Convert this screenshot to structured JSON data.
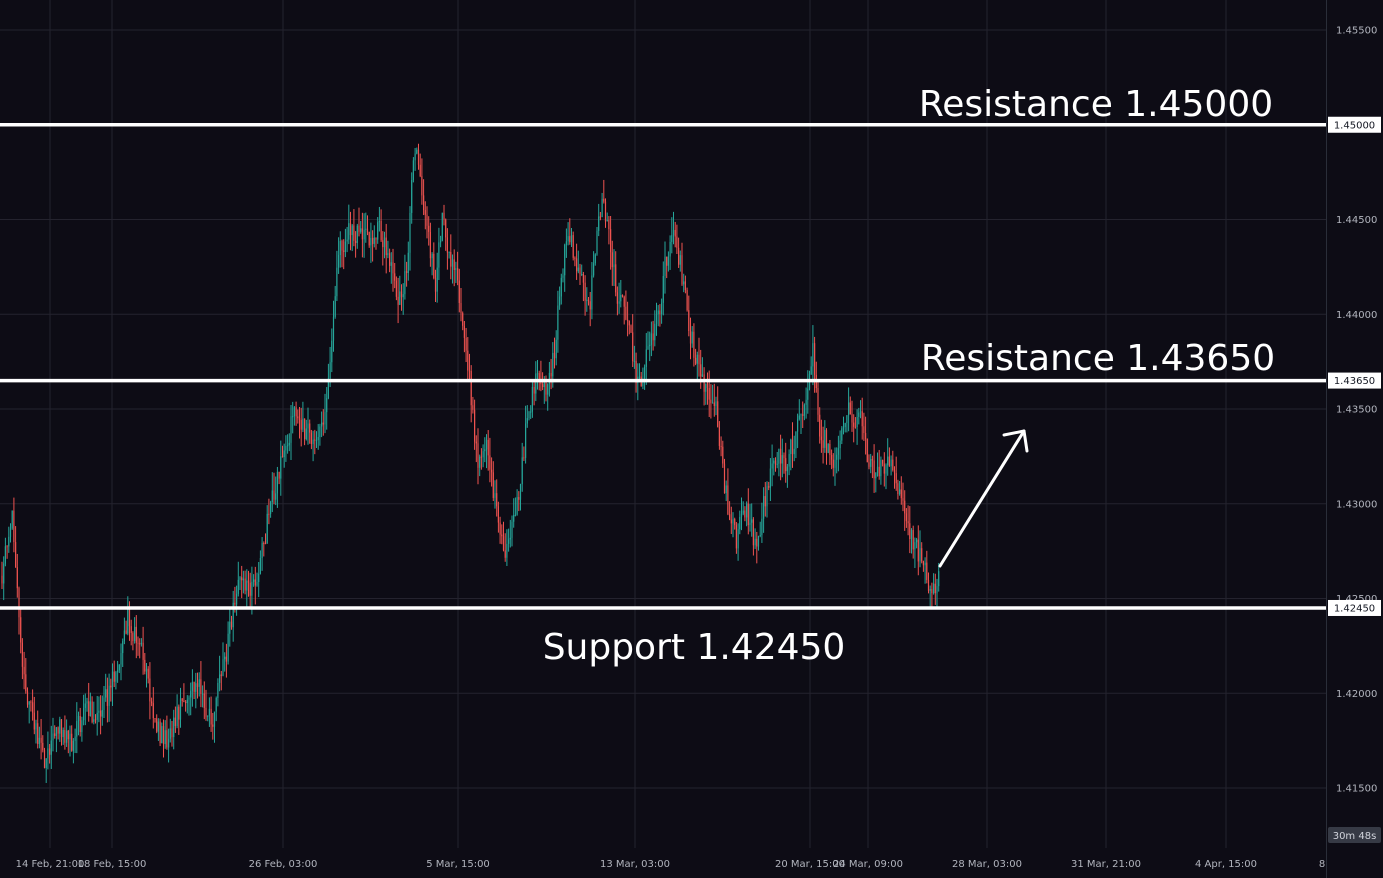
{
  "chart_data": {
    "type": "candlestick",
    "y_axis": {
      "position": "right",
      "ylim": [
        1.4115,
        1.4575
      ],
      "ticks": [
        "1.41500",
        "1.42000",
        "1.42500",
        "1.43000",
        "1.43500",
        "1.44000",
        "1.44500",
        "1.45000",
        "1.45500"
      ]
    },
    "x_axis": {
      "tick_labels": [
        "14 Feb, 21:00",
        "18 Feb, 15:00",
        "26 Feb, 03:00",
        "5 Mar, 15:00",
        "13 Mar, 03:00",
        "20 Mar, 15:00",
        "24 Mar, 09:00",
        "28 Mar, 03:00",
        "31 Mar, 21:00",
        "4 Apr, 15:00",
        "8"
      ]
    },
    "grid": true,
    "colors": {
      "background": "#0d0c15",
      "up": "#26a69a",
      "down": "#ef5350",
      "grid": "#24232e",
      "levels": "#ffffff"
    },
    "levels": [
      {
        "label": "Resistance 1.45000",
        "value": 1.45,
        "tag": "1.45000"
      },
      {
        "label": "Resistance 1.43650",
        "value": 1.4365,
        "tag": "1.43650"
      },
      {
        "label": "Support 1.42450",
        "value": 1.4245,
        "tag": "1.42450"
      }
    ],
    "price_path": [
      [
        0,
        1.4262
      ],
      [
        1.5,
        1.4295
      ],
      [
        3,
        1.421
      ],
      [
        4.5,
        1.4185
      ],
      [
        6,
        1.4165
      ],
      [
        8,
        1.4182
      ],
      [
        10,
        1.4175
      ],
      [
        12,
        1.4192
      ],
      [
        14,
        1.4188
      ],
      [
        16,
        1.4208
      ],
      [
        18,
        1.424
      ],
      [
        20,
        1.4222
      ],
      [
        22,
        1.418
      ],
      [
        24,
        1.4175
      ],
      [
        26,
        1.42
      ],
      [
        28,
        1.4205
      ],
      [
        30,
        1.4185
      ],
      [
        32,
        1.422
      ],
      [
        34,
        1.4262
      ],
      [
        36,
        1.4255
      ],
      [
        38,
        1.429
      ],
      [
        40,
        1.4325
      ],
      [
        42,
        1.4348
      ],
      [
        44,
        1.4335
      ],
      [
        46,
        1.434
      ],
      [
        47,
        1.4375
      ],
      [
        48,
        1.443
      ],
      [
        50,
        1.4445
      ],
      [
        52,
        1.444
      ],
      [
        54,
        1.4445
      ],
      [
        56,
        1.442
      ],
      [
        57,
        1.4405
      ],
      [
        58,
        1.443
      ],
      [
        59,
        1.449
      ],
      [
        60,
        1.447
      ],
      [
        61,
        1.444
      ],
      [
        62,
        1.4415
      ],
      [
        63,
        1.445
      ],
      [
        64,
        1.443
      ],
      [
        65,
        1.442
      ],
      [
        66,
        1.4395
      ],
      [
        67,
        1.436
      ],
      [
        68,
        1.432
      ],
      [
        69,
        1.4335
      ],
      [
        70,
        1.4315
      ],
      [
        71,
        1.429
      ],
      [
        72,
        1.427
      ],
      [
        73,
        1.4295
      ],
      [
        74,
        1.4305
      ],
      [
        75,
        1.434
      ],
      [
        76,
        1.436
      ],
      [
        77,
        1.437
      ],
      [
        78,
        1.436
      ],
      [
        79,
        1.438
      ],
      [
        80,
        1.442
      ],
      [
        81,
        1.4445
      ],
      [
        82,
        1.443
      ],
      [
        83,
        1.442
      ],
      [
        84,
        1.44
      ],
      [
        85,
        1.444
      ],
      [
        86,
        1.4465
      ],
      [
        87,
        1.4435
      ],
      [
        88,
        1.441
      ],
      [
        89,
        1.4405
      ],
      [
        90,
        1.4385
      ],
      [
        91,
        1.436
      ],
      [
        92,
        1.4375
      ],
      [
        93,
        1.439
      ],
      [
        94,
        1.44
      ],
      [
        95,
        1.443
      ],
      [
        96,
        1.444
      ],
      [
        97,
        1.443
      ],
      [
        98,
        1.44
      ],
      [
        99,
        1.438
      ],
      [
        100,
        1.4365
      ],
      [
        101,
        1.436
      ],
      [
        102,
        1.4355
      ],
      [
        103,
        1.432
      ],
      [
        104,
        1.4295
      ],
      [
        105,
        1.428
      ],
      [
        106,
        1.43
      ],
      [
        107,
        1.429
      ],
      [
        108,
        1.4275
      ],
      [
        109,
        1.43
      ],
      [
        110,
        1.4315
      ],
      [
        111,
        1.4325
      ],
      [
        112,
        1.432
      ],
      [
        113,
        1.433
      ],
      [
        114,
        1.4345
      ],
      [
        115,
        1.4355
      ],
      [
        116,
        1.438
      ],
      [
        117,
        1.434
      ],
      [
        118,
        1.433
      ],
      [
        119,
        1.432
      ],
      [
        120,
        1.434
      ],
      [
        121,
        1.435
      ],
      [
        122,
        1.4345
      ],
      [
        123,
        1.4345
      ],
      [
        124,
        1.432
      ],
      [
        125,
        1.4315
      ],
      [
        126,
        1.432
      ],
      [
        127,
        1.4325
      ],
      [
        128,
        1.431
      ],
      [
        129,
        1.43
      ],
      [
        130,
        1.4285
      ],
      [
        131,
        1.4275
      ],
      [
        132,
        1.4265
      ],
      [
        133,
        1.425
      ],
      [
        134,
        1.4265
      ]
    ]
  }
}
